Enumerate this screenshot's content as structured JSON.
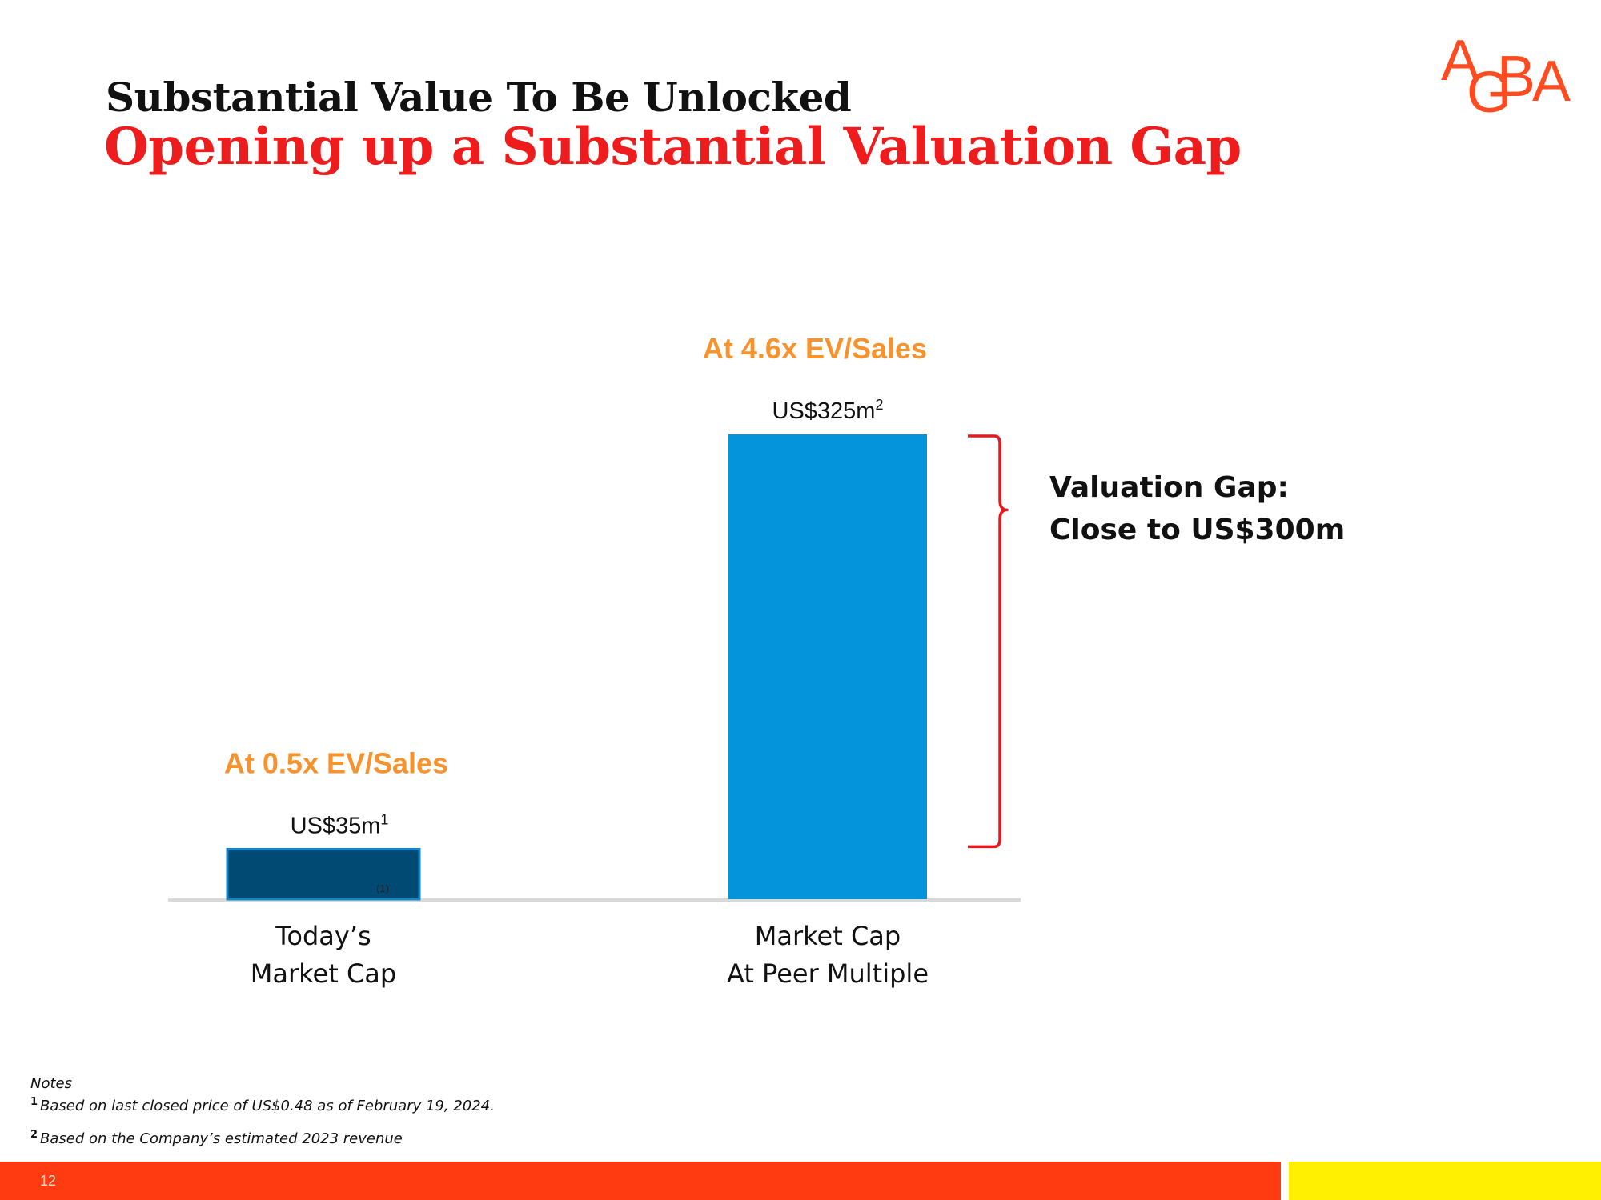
{
  "header": {
    "title": "Substantial Value To Be Unlocked",
    "subtitle": "Opening up a Substantial Valuation Gap"
  },
  "logo": {
    "letters": [
      "A",
      "G",
      "B",
      "A"
    ],
    "color": "#ff4b1f"
  },
  "chart_data": {
    "type": "bar",
    "categories": [
      "Today’s Market Cap",
      "Market Cap At Peer Multiple"
    ],
    "category_lines": [
      [
        "Today’s",
        "Market Cap"
      ],
      [
        "Market Cap",
        "At Peer Multiple"
      ]
    ],
    "values": [
      35,
      325
    ],
    "unit": "US$m",
    "value_labels": [
      "US$35m",
      "US$325m"
    ],
    "value_label_notes": [
      "1",
      "2"
    ],
    "multiples": [
      "At 0.5x EV/Sales",
      "At 4.6x EV/Sales"
    ],
    "bar_colors": [
      "#004a73",
      "#0394db"
    ],
    "inner_note": "(1)",
    "annotation": {
      "type": "brace",
      "lines": [
        "Valuation Gap:",
        "Close to US$300m"
      ],
      "color": "#e8191c"
    },
    "ylim": [
      0,
      325
    ],
    "colors": {
      "multiple": "#f7922c",
      "axis": "#d9d9d9"
    }
  },
  "notes": {
    "heading": "Notes",
    "items": [
      {
        "marker": "1",
        "text": "Based on last closed price of US$0.48 as of February 19, 2024."
      },
      {
        "marker": "2",
        "text": "Based on the Company’s estimated 2023 revenue"
      }
    ]
  },
  "footer": {
    "page_number": "12",
    "colors": {
      "red": "#ff3b12",
      "yellow": "#ffef00"
    }
  }
}
